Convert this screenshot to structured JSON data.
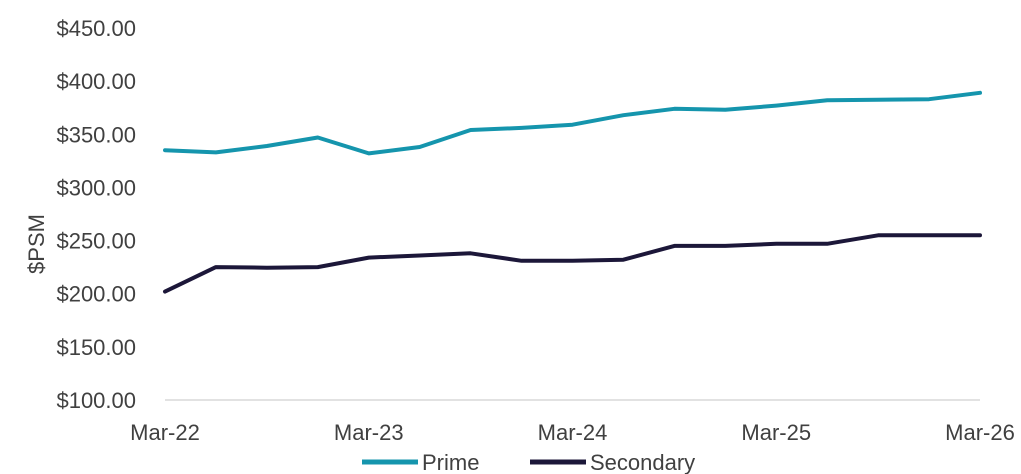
{
  "chart_data": {
    "type": "line",
    "ylabel": "$PSM",
    "ylim": [
      100,
      450
    ],
    "yticks": [
      "$100.00",
      "$150.00",
      "$200.00",
      "$250.00",
      "$300.00",
      "$350.00",
      "$400.00",
      "$450.00"
    ],
    "ytick_values": [
      100,
      150,
      200,
      250,
      300,
      350,
      400,
      450
    ],
    "xticks": [
      "Mar-22",
      "Mar-23",
      "Mar-24",
      "Mar-25",
      "Mar-26"
    ],
    "x": [
      "Mar-22",
      "Jun-22",
      "Sep-22",
      "Dec-22",
      "Mar-23",
      "Jun-23",
      "Sep-23",
      "Dec-23",
      "Mar-24",
      "Jun-24",
      "Sep-24",
      "Dec-24",
      "Mar-25",
      "Jun-25",
      "Sep-25",
      "Dec-25",
      "Mar-26"
    ],
    "series": [
      {
        "name": "Prime",
        "color": "#1595ad",
        "values": [
          335,
          333,
          339,
          347,
          332,
          338,
          354,
          356,
          359,
          368,
          374,
          373,
          377,
          382,
          382.5,
          383,
          389
        ]
      },
      {
        "name": "Secondary",
        "color": "#1c1739",
        "values": [
          202,
          225,
          224.5,
          225,
          234,
          236,
          238,
          231,
          231,
          232,
          245,
          245,
          247,
          247,
          255,
          255,
          255
        ]
      }
    ],
    "legend": "bottom",
    "grid": false
  }
}
